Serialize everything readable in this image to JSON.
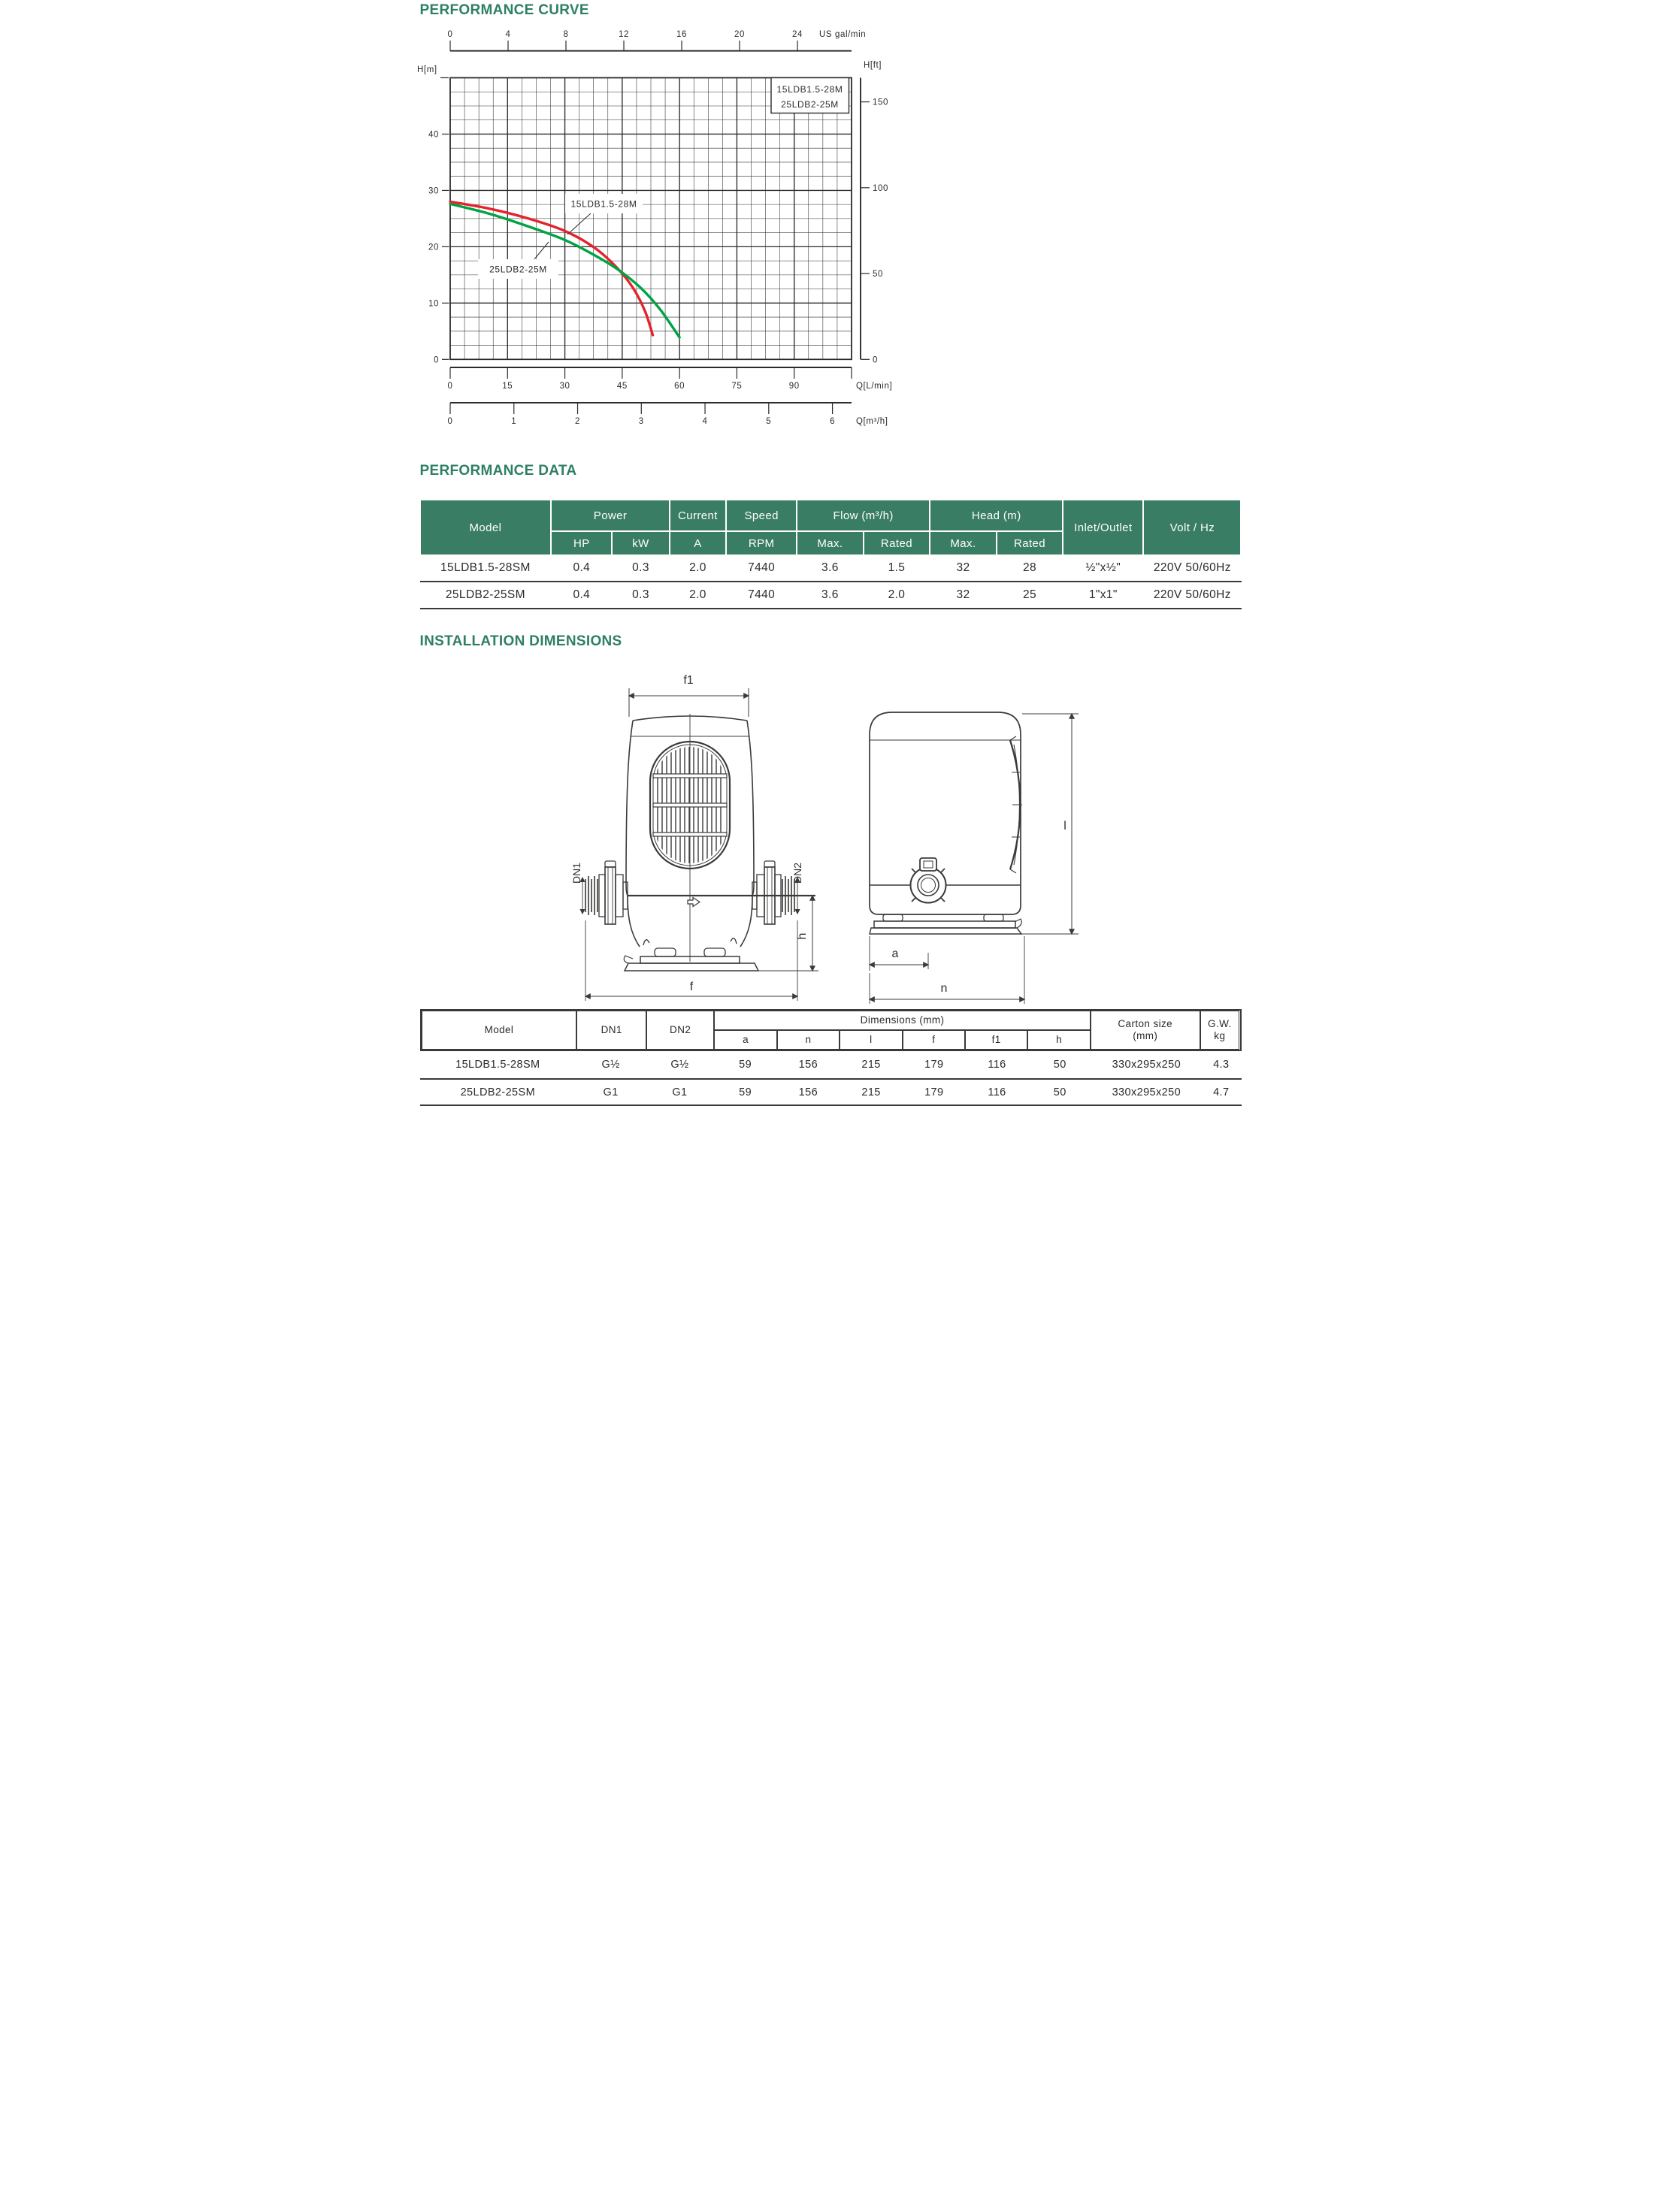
{
  "titles": {
    "curve": "PERFORMANCE CURVE",
    "data": "PERFORMANCE DATA",
    "dims": "INSTALLATION DIMENSIONS"
  },
  "colors": {
    "accent_green": "#2E7F66",
    "table_header_green": "#3A7D65",
    "curve_red": "#E5232D",
    "curve_green": "#00A344",
    "line_dark": "#3c3a38"
  },
  "chart_data": {
    "type": "line",
    "top_axis": {
      "unit": "US gal/min",
      "ticks": [
        0,
        4,
        8,
        12,
        16,
        20,
        24
      ]
    },
    "left_axis": {
      "unit": "H[m]",
      "ticks": [
        0,
        10,
        20,
        30,
        40
      ],
      "max": 50,
      "minor_step": 2.5
    },
    "right_axis": {
      "unit": "H[ft]",
      "ticks": [
        0,
        50,
        100,
        150
      ]
    },
    "bottom_axis_lmin": {
      "unit": "Q[L/min]",
      "ticks": [
        0,
        15,
        30,
        45,
        60,
        75,
        90
      ],
      "max": 105,
      "minor_step": 3.75
    },
    "bottom_axis_m3h": {
      "unit": "Q[m³/h]",
      "ticks": [
        0,
        1,
        2,
        3,
        4,
        5,
        6
      ]
    },
    "legend": [
      "15LDB1.5-28M",
      "25LDB2-25M"
    ],
    "grid": true,
    "series": [
      {
        "name": "15LDB1.5-28M",
        "color": "#E5232D",
        "points_q_lmin_h_m": [
          [
            0,
            28
          ],
          [
            10,
            26.8
          ],
          [
            20,
            25.1
          ],
          [
            30,
            22.8
          ],
          [
            38,
            19.7
          ],
          [
            44,
            16
          ],
          [
            48,
            12.5
          ],
          [
            51,
            8.5
          ],
          [
            53,
            4.3
          ]
        ]
      },
      {
        "name": "25LDB2-25M",
        "color": "#00A344",
        "points_q_lmin_h_m": [
          [
            0,
            27.6
          ],
          [
            10,
            25.9
          ],
          [
            20,
            23.7
          ],
          [
            30,
            21.2
          ],
          [
            38,
            18.4
          ],
          [
            44,
            15.9
          ],
          [
            50,
            12.6
          ],
          [
            55,
            8.8
          ],
          [
            60,
            3.9
          ]
        ]
      }
    ]
  },
  "performance_table": {
    "header": {
      "model": "Model",
      "power": "Power",
      "hp": "HP",
      "kw": "kW",
      "current": "Current",
      "a": "A",
      "speed": "Speed",
      "rpm": "RPM",
      "flow": "Flow (m³/h)",
      "head": "Head (m)",
      "flow_max": "Max.",
      "flow_rated": "Rated",
      "head_max": "Max.",
      "head_rated": "Rated",
      "inlet": "Inlet/Outlet",
      "volt": "Volt / Hz"
    },
    "rows": [
      [
        "15LDB1.5-28SM",
        "0.4",
        "0.3",
        "2.0",
        "7440",
        "3.6",
        "1.5",
        "32",
        "28",
        "½\"x½\"",
        "220V  50/60Hz"
      ],
      [
        "25LDB2-25SM",
        "0.4",
        "0.3",
        "2.0",
        "7440",
        "3.6",
        "2.0",
        "32",
        "25",
        "1\"x1\"",
        "220V  50/60Hz"
      ]
    ]
  },
  "installation_labels": {
    "f1": "f1",
    "dn1": "DN1",
    "dn2": "DN2",
    "h": "h",
    "f": "f",
    "l": "l",
    "a": "a",
    "n": "n"
  },
  "dimension_table": {
    "header": {
      "model": "Model",
      "dn1": "DN1",
      "dn2": "DN2",
      "dims": "Dimensions  (mm)",
      "a": "a",
      "n": "n",
      "l": "l",
      "f": "f",
      "f1": "f1",
      "h": "h",
      "carton_line1": "Carton size",
      "carton_line2": "(mm)",
      "gw_line1": "G.W.",
      "gw_line2": "kg"
    },
    "rows": [
      [
        "15LDB1.5-28SM",
        "G½",
        "G½",
        "59",
        "156",
        "215",
        "179",
        "116",
        "50",
        "330x295x250",
        "4.3"
      ],
      [
        "25LDB2-25SM",
        "G1",
        "G1",
        "59",
        "156",
        "215",
        "179",
        "116",
        "50",
        "330x295x250",
        "4.7"
      ]
    ]
  }
}
